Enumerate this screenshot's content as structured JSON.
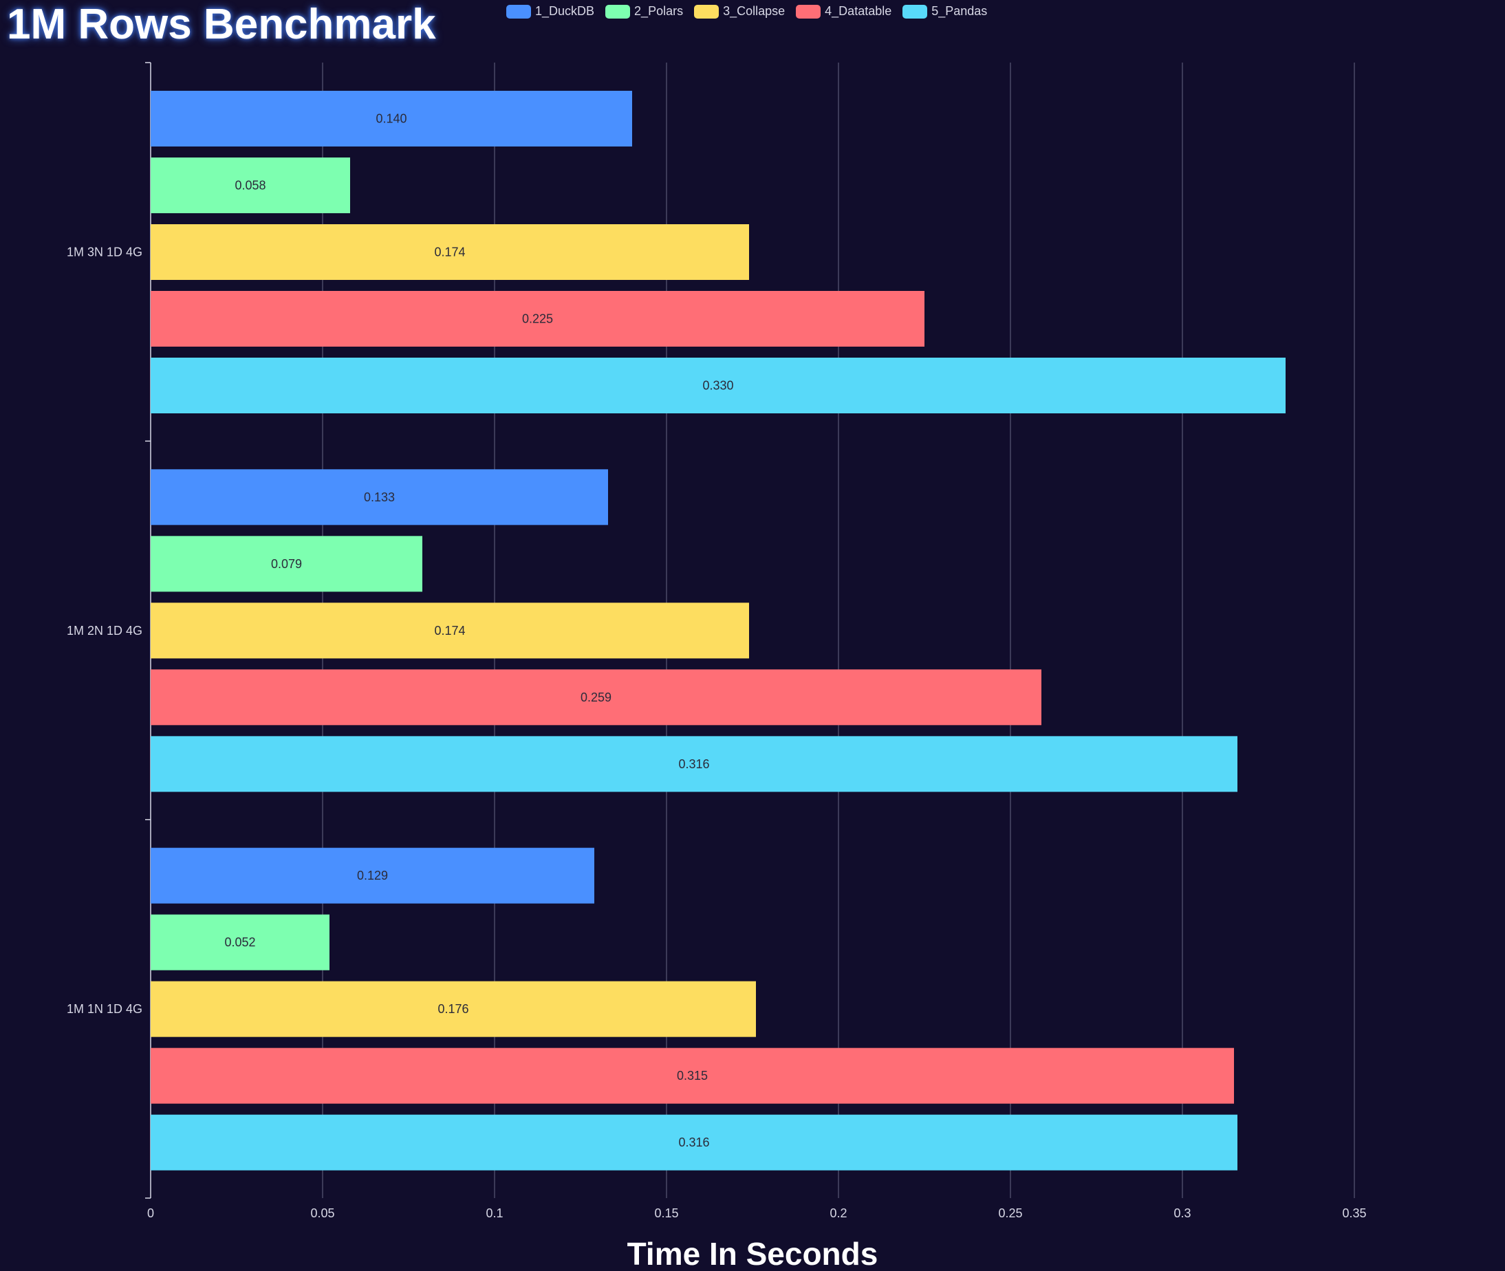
{
  "chart_data": {
    "type": "bar",
    "orientation": "horizontal",
    "title": "1M Rows Benchmark",
    "xlabel": "Time In Seconds",
    "ylabel": "",
    "xlim": [
      0,
      0.35
    ],
    "xticks": [
      "0",
      "0.05",
      "0.1",
      "0.15",
      "0.2",
      "0.25",
      "0.3",
      "0.35"
    ],
    "xtick_values": [
      0,
      0.05,
      0.1,
      0.15,
      0.2,
      0.25,
      0.3,
      0.35
    ],
    "grid": "vertical",
    "legend_position": "top",
    "categories": [
      "1M 3N 1D 4G",
      "1M 2N 1D 4G",
      "1M 1N 1D 4G"
    ],
    "series": [
      {
        "name": "1_DuckDB",
        "color": "#4a90ff",
        "values": [
          0.14,
          0.133,
          0.129
        ],
        "labels": [
          "0.140",
          "0.133",
          "0.129"
        ]
      },
      {
        "name": "2_Polars",
        "color": "#7dffb0",
        "values": [
          0.058,
          0.079,
          0.052
        ],
        "labels": [
          "0.058",
          "0.079",
          "0.052"
        ]
      },
      {
        "name": "3_Collapse",
        "color": "#fddd60",
        "values": [
          0.174,
          0.174,
          0.176
        ],
        "labels": [
          "0.174",
          "0.174",
          "0.176"
        ]
      },
      {
        "name": "4_Datatable",
        "color": "#ff6e76",
        "values": [
          0.225,
          0.259,
          0.315
        ],
        "labels": [
          "0.225",
          "0.259",
          "0.315"
        ]
      },
      {
        "name": "5_Pandas",
        "color": "#58d9f9",
        "values": [
          0.33,
          0.316,
          0.316
        ],
        "labels": [
          "0.330",
          "0.316",
          "0.316"
        ]
      }
    ]
  },
  "colors": {
    "background": "#110d2c",
    "grid": "#4a4a66",
    "axis": "#d8d8e6",
    "text": "#d8d8e6",
    "bar_label": "#2b2b3a"
  }
}
